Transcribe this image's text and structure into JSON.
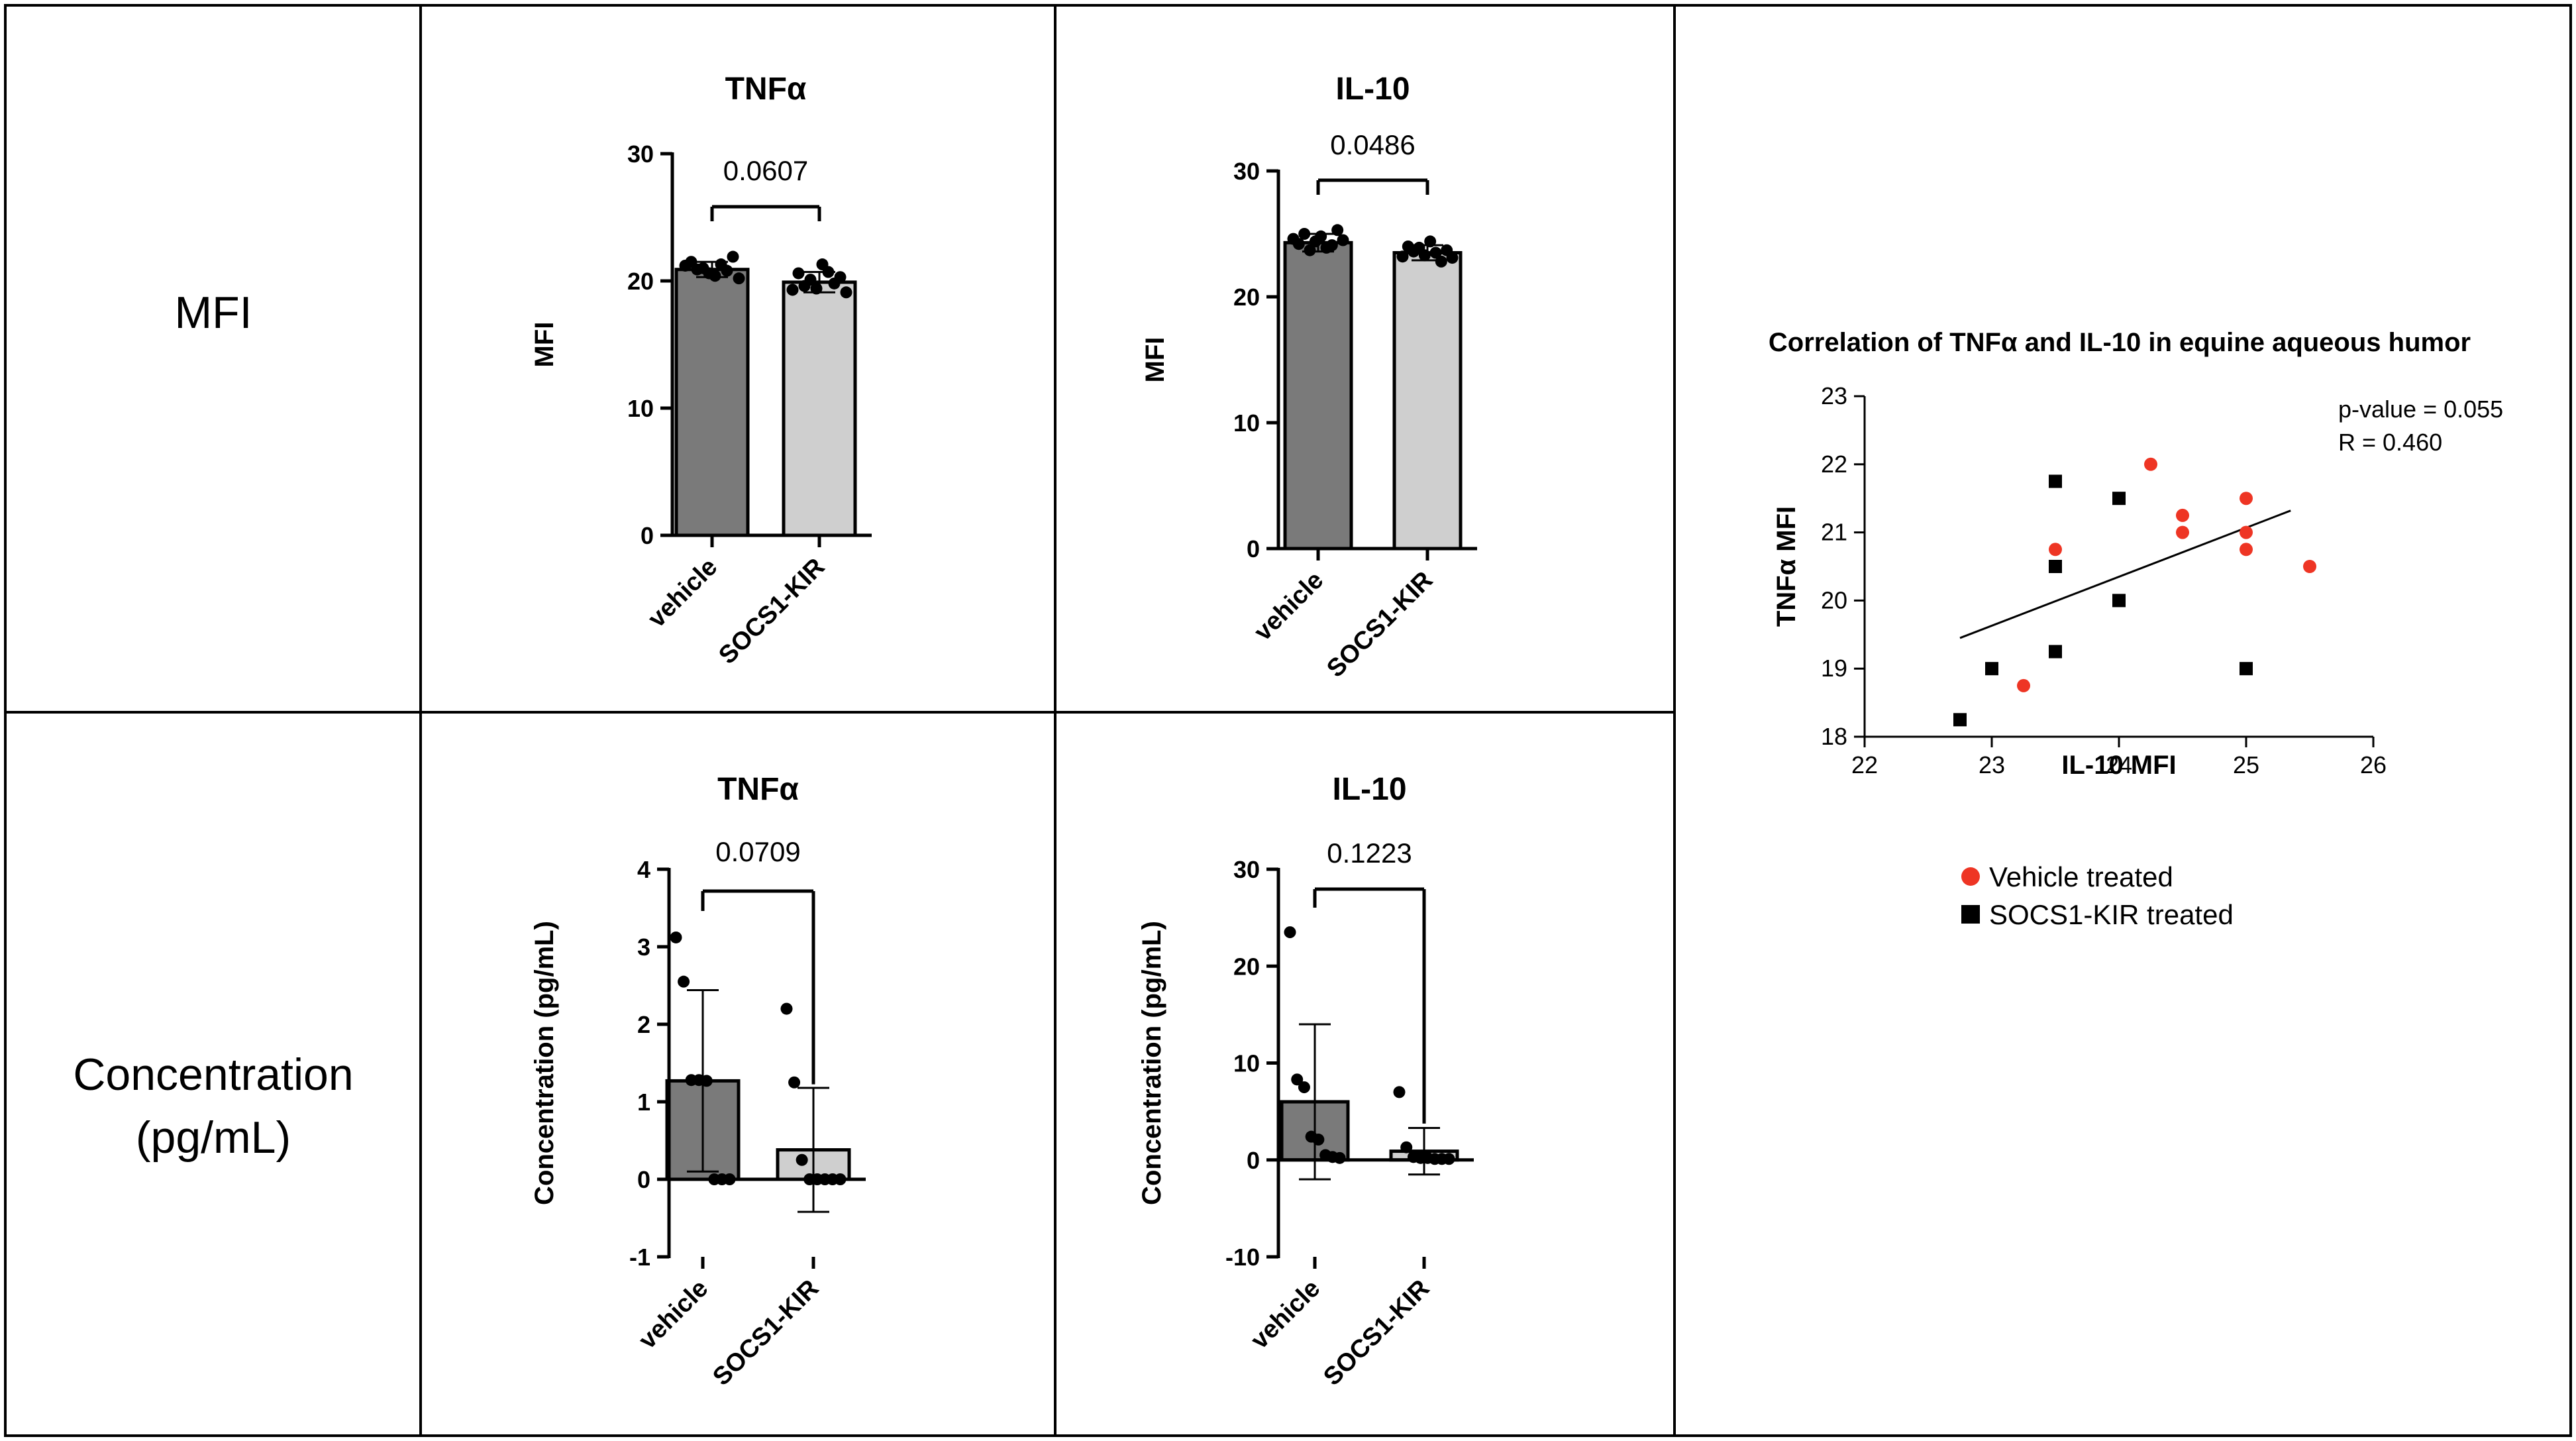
{
  "row_labels": {
    "mfi": "MFI",
    "conc_line1": "Concentration",
    "conc_line2": "(pg/mL)"
  },
  "colors": {
    "vehicle_bar": "#7a7a7a",
    "socs_bar": "#cfcfcf",
    "vehicle_point": "#ee3524",
    "socs_point": "#000000",
    "grid_line": "#000000"
  },
  "chart_data": [
    {
      "id": "tnf-mfi",
      "type": "bar",
      "title": "TNFα",
      "ylabel": "MFI",
      "categories": [
        "vehicle",
        "SOCS1-KIR"
      ],
      "values": [
        20.9,
        19.9
      ],
      "sd": [
        0.6,
        0.8
      ],
      "ylim": [
        0,
        30
      ],
      "yticks": [
        0,
        10,
        20,
        30
      ],
      "p_value": "0.0607",
      "points": [
        [
          21.2,
          21.5,
          20.9,
          21.0,
          20.6,
          20.4,
          21.3,
          20.8,
          21.9,
          20.2
        ],
        [
          19.3,
          20.6,
          19.6,
          20.1,
          19.4,
          21.3,
          20.7,
          19.8,
          20.3,
          19.1
        ]
      ]
    },
    {
      "id": "il10-mfi",
      "type": "bar",
      "title": "IL-10",
      "ylabel": "MFI",
      "categories": [
        "vehicle",
        "SOCS1-KIR"
      ],
      "values": [
        24.3,
        23.5
      ],
      "sd": [
        0.7,
        0.6
      ],
      "ylim": [
        0,
        30
      ],
      "yticks": [
        0,
        10,
        20,
        30
      ],
      "p_value": "0.0486",
      "points": [
        [
          24.6,
          24.2,
          25.0,
          23.7,
          24.4,
          24.8,
          23.9,
          24.1,
          25.3,
          24.5
        ],
        [
          23.2,
          24.0,
          23.6,
          23.9,
          23.3,
          24.4,
          23.5,
          22.8,
          23.7,
          23.1
        ]
      ]
    },
    {
      "id": "tnf-conc",
      "type": "bar",
      "title": "TNFα",
      "ylabel": "Concentration (pg/mL)",
      "categories": [
        "vehicle",
        "SOCS1-KIR"
      ],
      "values": [
        1.27,
        0.38
      ],
      "sd": [
        1.17,
        0.8
      ],
      "ylim": [
        -1,
        4
      ],
      "yticks": [
        -1,
        0,
        1,
        2,
        3,
        4
      ],
      "p_value": "0.0709",
      "points": [
        [
          3.12,
          2.55,
          1.28,
          1.28,
          1.27,
          0.0,
          0.0,
          0.0
        ],
        [
          2.2,
          1.25,
          0.25,
          0.0,
          0.0,
          0.0,
          0.0,
          0.0
        ]
      ]
    },
    {
      "id": "il10-conc",
      "type": "bar",
      "title": "IL-10",
      "ylabel": "Concentration (pg/mL)",
      "categories": [
        "vehicle",
        "SOCS1-KIR"
      ],
      "values": [
        6.0,
        0.9
      ],
      "sd": [
        8.0,
        2.4
      ],
      "ylim": [
        -10,
        30
      ],
      "yticks": [
        -10,
        0,
        10,
        20,
        30
      ],
      "p_value": "0.1223",
      "points": [
        [
          23.5,
          8.3,
          7.5,
          2.4,
          2.1,
          0.5,
          0.3,
          0.2
        ],
        [
          7.0,
          1.3,
          0.3,
          0.2,
          0.2,
          0.1,
          0.1,
          0.1
        ]
      ]
    },
    {
      "id": "correlation",
      "type": "scatter",
      "title": "Correlation of TNFα and IL-10 in equine aqueous humor",
      "xlabel": "IL-10 MFI",
      "ylabel": "TNFα MFI",
      "xlim": [
        22,
        26
      ],
      "ylim": [
        18,
        23
      ],
      "xticks": [
        22,
        23,
        24,
        25,
        26
      ],
      "yticks": [
        18,
        19,
        20,
        21,
        22,
        23
      ],
      "stats": [
        "p-value = 0.055",
        "R = 0.460"
      ],
      "trendline": [
        [
          22.75,
          19.45
        ],
        [
          25.35,
          21.32
        ]
      ],
      "series": [
        {
          "name": "Vehicle treated",
          "marker": "circle",
          "points": [
            [
              23.25,
              18.75
            ],
            [
              23.5,
              20.75
            ],
            [
              24.25,
              22.0
            ],
            [
              24.5,
              21.25
            ],
            [
              24.5,
              21.0
            ],
            [
              25.0,
              21.5
            ],
            [
              25.0,
              21.0
            ],
            [
              25.0,
              20.75
            ],
            [
              25.5,
              20.5
            ]
          ]
        },
        {
          "name": "SOCS1-KIR treated",
          "marker": "square",
          "points": [
            [
              22.75,
              18.25
            ],
            [
              23.0,
              19.0
            ],
            [
              23.5,
              21.75
            ],
            [
              23.5,
              20.5
            ],
            [
              23.5,
              19.25
            ],
            [
              24.0,
              21.5
            ],
            [
              24.0,
              20.0
            ],
            [
              25.0,
              19.0
            ]
          ]
        }
      ]
    }
  ]
}
